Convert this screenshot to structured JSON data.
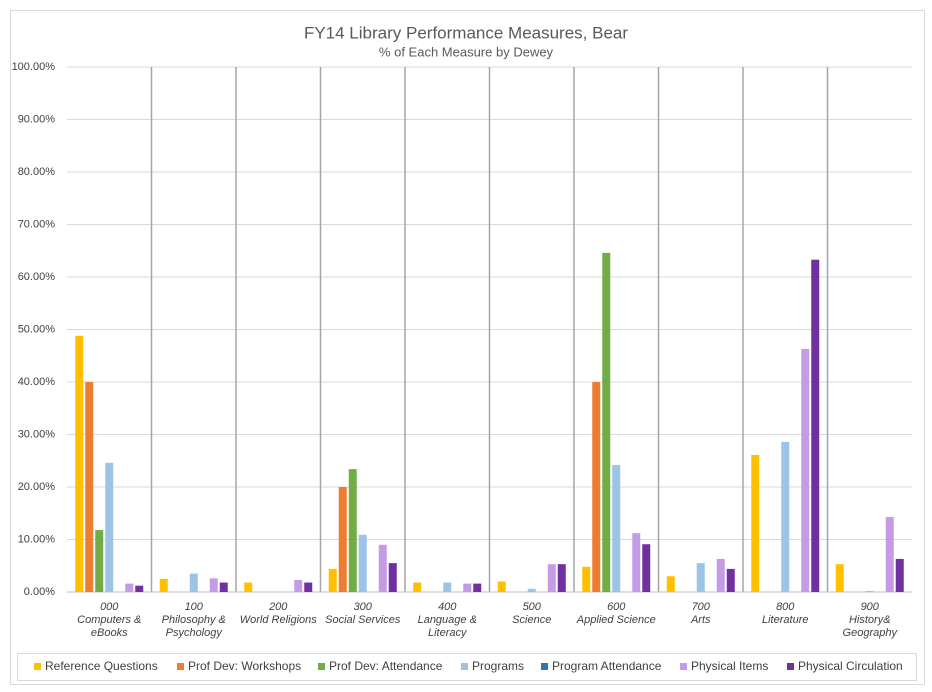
{
  "chart_data": {
    "type": "bar",
    "title": "FY14 Library Performance Measures, Bear",
    "subtitle": "% of Each Measure by Dewey",
    "categories": [
      "000\nComputers &\neBooks",
      "100\nPhilosophy &\nPsychology",
      "200\nWorld Religions",
      "300\nSocial Services",
      "400\nLanguage &\nLiteracy",
      "500\nScience",
      "600\nApplied Science",
      "700\nArts",
      "800\nLiterature",
      "900\nHistory&\nGeography"
    ],
    "series": [
      {
        "name": "Reference Questions",
        "color": "#FFC000",
        "values": [
          48.8,
          2.5,
          1.8,
          4.4,
          1.8,
          2.0,
          4.8,
          3.0,
          26.1,
          5.3
        ]
      },
      {
        "name": "Prof Dev: Workshops",
        "color": "#ED7D31",
        "values": [
          40,
          0,
          0,
          20,
          0,
          0,
          40,
          0,
          0,
          0
        ]
      },
      {
        "name": "Prof Dev: Attendance",
        "color": "#70AD47",
        "values": [
          11.8,
          0,
          0,
          23.4,
          0,
          0,
          64.6,
          0,
          0,
          0
        ]
      },
      {
        "name": "Programs",
        "color": "#9DC3E6",
        "values": [
          24.6,
          3.5,
          0,
          10.9,
          1.8,
          0.6,
          24.2,
          5.5,
          28.6,
          0.2
        ]
      },
      {
        "name": "Program Attendance",
        "color": "#2E75B6",
        "values": [
          0,
          0,
          0,
          0,
          0,
          0,
          0,
          0,
          0,
          0
        ]
      },
      {
        "name": "Physical Items",
        "color": "#C59BE6",
        "values": [
          1.6,
          2.6,
          2.3,
          9.0,
          1.6,
          5.3,
          11.2,
          6.3,
          46.3,
          14.3
        ]
      },
      {
        "name": "Physical Circulation",
        "color": "#7030A0",
        "values": [
          1.2,
          1.8,
          1.8,
          5.5,
          1.6,
          5.3,
          9.1,
          4.4,
          63.3,
          6.3
        ]
      }
    ],
    "ylim": [
      0,
      100
    ],
    "yticks": [
      {
        "value": 0,
        "label": "0.00%"
      },
      {
        "value": 10,
        "label": "10.00%"
      },
      {
        "value": 20,
        "label": "20.00%"
      },
      {
        "value": 30,
        "label": "30.00%"
      },
      {
        "value": 40,
        "label": "40.00%"
      },
      {
        "value": 50,
        "label": "50.00%"
      },
      {
        "value": 60,
        "label": "60.00%"
      },
      {
        "value": 70,
        "label": "70.00%"
      },
      {
        "value": 80,
        "label": "80.00%"
      },
      {
        "value": 90,
        "label": "90.00%"
      },
      {
        "value": 100,
        "label": "100.00%"
      }
    ],
    "grid": true,
    "legend": "bottom"
  }
}
